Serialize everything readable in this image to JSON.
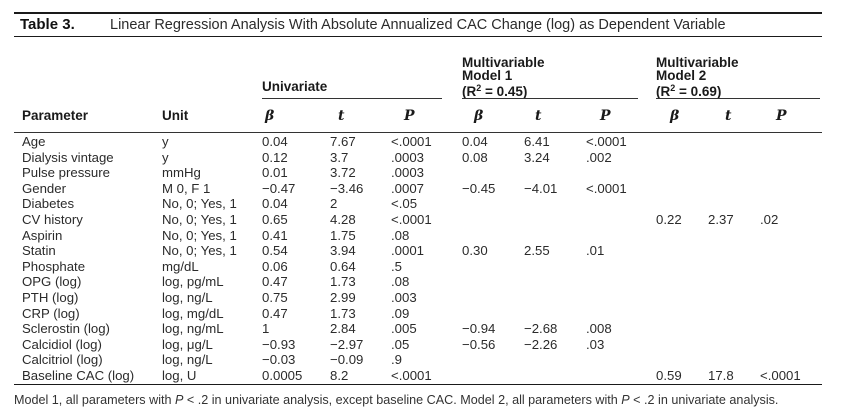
{
  "title": {
    "label": "Table 3.",
    "caption": "Linear Regression Analysis With Absolute Annualized CAC Change (log) as Dependent Variable"
  },
  "groups": {
    "univariate": "Univariate",
    "model1": {
      "line1": "Multivariable",
      "line2": "Model 1",
      "r2_prefix": "(R",
      "r2_sup": "2",
      "r2_suffix": " = 0.45)"
    },
    "model2": {
      "line1": "Multivariable",
      "line2": "Model 2",
      "r2_prefix": "(R",
      "r2_sup": "2",
      "r2_suffix": " = 0.69)"
    }
  },
  "columns": {
    "parameter": "Parameter",
    "unit": "Unit",
    "beta": "β",
    "t": "t",
    "p": "P"
  },
  "rows": [
    [
      "Age",
      "y",
      "0.04",
      "7.67",
      "<.0001",
      "0.04",
      "6.41",
      "<.0001",
      "",
      "",
      ""
    ],
    [
      "Dialysis vintage",
      "y",
      "0.12",
      "3.7",
      ".0003",
      "0.08",
      "3.24",
      ".002",
      "",
      "",
      ""
    ],
    [
      "Pulse pressure",
      "mmHg",
      "0.01",
      "3.72",
      ".0003",
      "",
      "",
      "",
      "",
      "",
      ""
    ],
    [
      "Gender",
      "M 0, F 1",
      "−0.47",
      "−3.46",
      ".0007",
      "−0.45",
      "−4.01",
      "<.0001",
      "",
      "",
      ""
    ],
    [
      "Diabetes",
      "No, 0; Yes, 1",
      "0.04",
      "2",
      "<.05",
      "",
      "",
      "",
      "",
      "",
      ""
    ],
    [
      "CV history",
      "No, 0; Yes, 1",
      "0.65",
      "4.28",
      "<.0001",
      "",
      "",
      "",
      "0.22",
      "2.37",
      ".02"
    ],
    [
      "Aspirin",
      "No, 0; Yes, 1",
      "0.41",
      "1.75",
      ".08",
      "",
      "",
      "",
      "",
      "",
      ""
    ],
    [
      "Statin",
      "No, 0; Yes, 1",
      "0.54",
      "3.94",
      ".0001",
      "0.30",
      "2.55",
      ".01",
      "",
      "",
      ""
    ],
    [
      "Phosphate",
      "mg/dL",
      "0.06",
      "0.64",
      ".5",
      "",
      "",
      "",
      "",
      "",
      ""
    ],
    [
      "OPG (log)",
      "log, pg/mL",
      "0.47",
      "1.73",
      ".08",
      "",
      "",
      "",
      "",
      "",
      ""
    ],
    [
      "PTH (log)",
      "log, ng/L",
      "0.75",
      "2.99",
      ".003",
      "",
      "",
      "",
      "",
      "",
      ""
    ],
    [
      "CRP (log)",
      "log, mg/dL",
      "0.47",
      "1.73",
      ".09",
      "",
      "",
      "",
      "",
      "",
      ""
    ],
    [
      "Sclerostin (log)",
      "log, ng/mL",
      "1",
      "2.84",
      ".005",
      "−0.94",
      "−2.68",
      ".008",
      "",
      "",
      ""
    ],
    [
      "Calcidiol (log)",
      "log, μg/L",
      "−0.93",
      "−2.97",
      ".05",
      "−0.56",
      "−2.26",
      ".03",
      "",
      "",
      ""
    ],
    [
      "Calcitriol (log)",
      "log, ng/L",
      "−0.03",
      "−0.09",
      ".9",
      "",
      "",
      "",
      "",
      "",
      ""
    ],
    [
      "Baseline CAC (log)",
      "log, U",
      "0.0005",
      "8.2",
      "<.0001",
      "",
      "",
      "",
      "0.59",
      "17.8",
      "<.0001"
    ]
  ],
  "footnote": {
    "part1": "Model 1, all parameters with ",
    "p1": "P",
    "part2": " < .2 in univariate analysis, except baseline CAC. Model 2, all parameters with ",
    "p2": "P",
    "part3": " < .2 in univariate analysis."
  }
}
